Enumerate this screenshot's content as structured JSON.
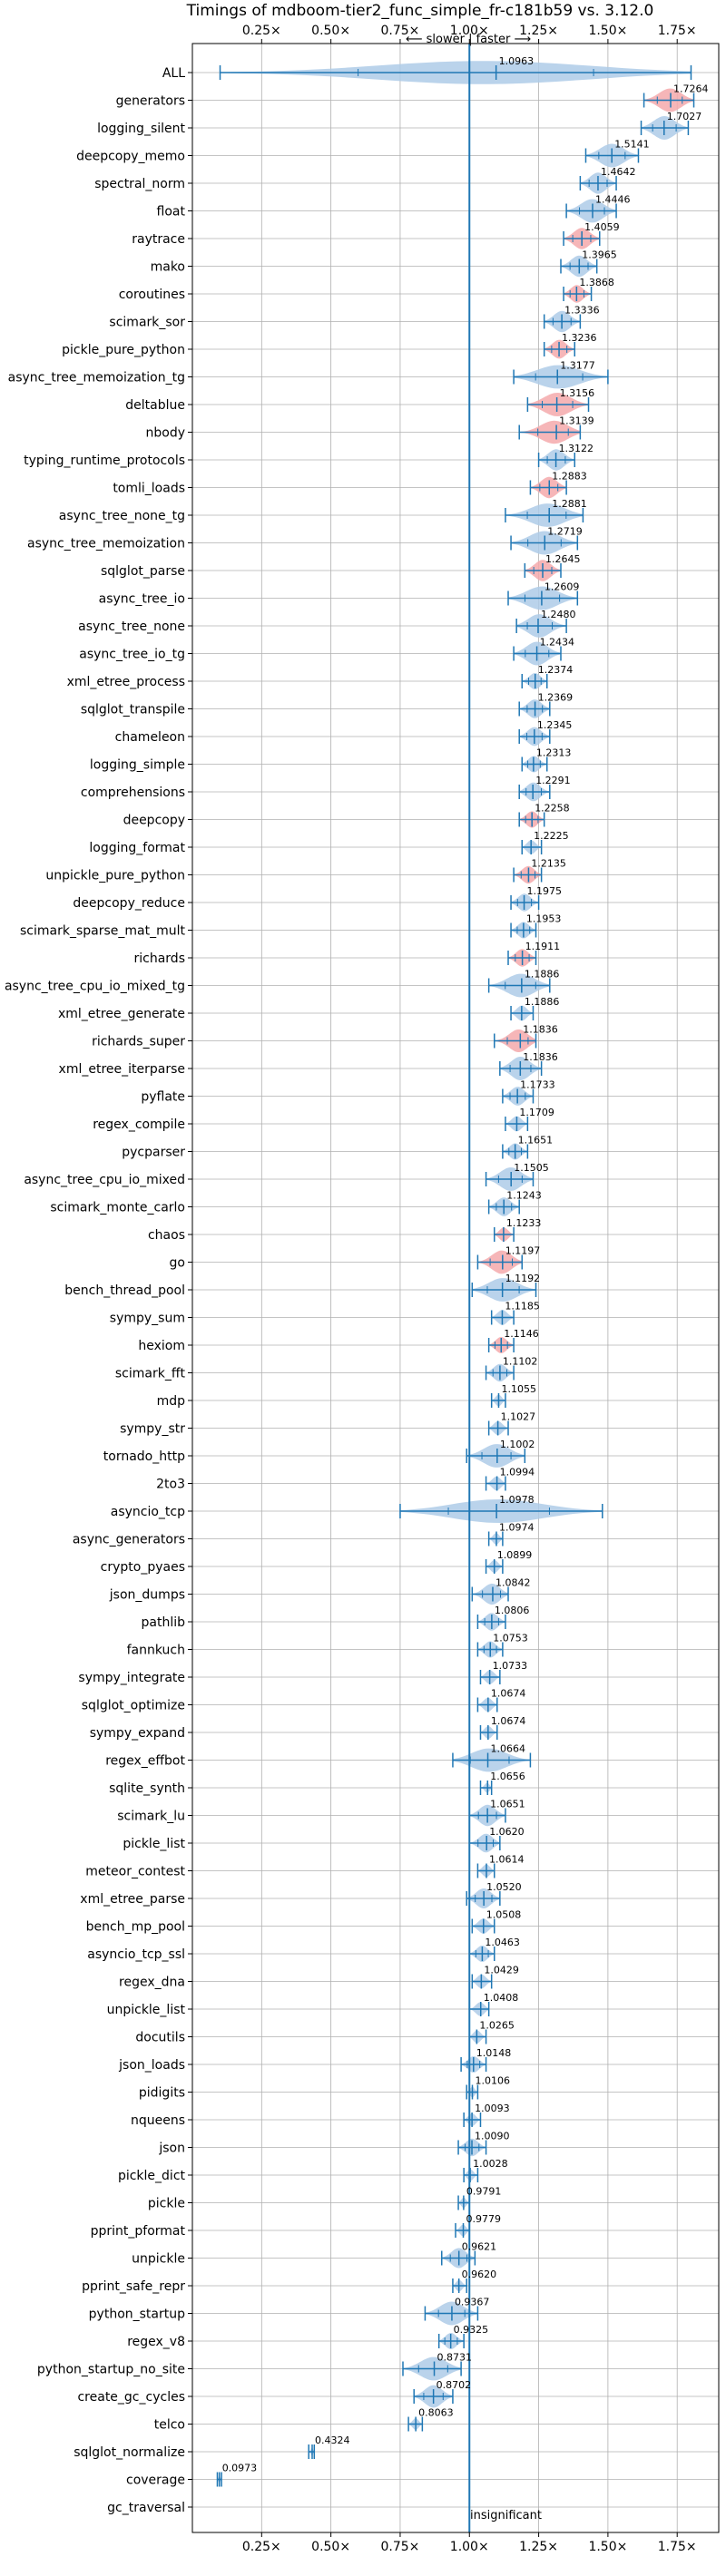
{
  "chart_data": {
    "type": "violin",
    "title": "Timings of mdboom-tier2_func_simple_fr-c181b59 vs. 3.12.0",
    "direction_note": "⟵ slower | faster ⟶",
    "reference_note": "insignificant",
    "xlim": [
      0.0,
      1.9
    ],
    "xticks": [
      0.25,
      0.5,
      0.75,
      1.0,
      1.25,
      1.5,
      1.75
    ],
    "xtick_labels": [
      "0.25×",
      "0.50×",
      "0.75×",
      "1.00×",
      "1.25×",
      "1.50×",
      "1.75×"
    ],
    "reference_line": 1.0,
    "grid": true,
    "colors": {
      "faster": "#aecbe8",
      "slower": "#f4a9ab",
      "line": "#1f77b4",
      "grid": "#b0b0b0"
    },
    "benchmarks": [
      {
        "name": "ALL",
        "value": 1.0963,
        "label": "1.0963",
        "min": 0.1,
        "max": 1.8,
        "color": "blue"
      },
      {
        "name": "generators",
        "value": 1.7264,
        "label": "1.7264",
        "min": 1.63,
        "max": 1.81,
        "color": "red"
      },
      {
        "name": "logging_silent",
        "value": 1.7027,
        "label": "1.7027",
        "min": 1.62,
        "max": 1.79,
        "color": "blue"
      },
      {
        "name": "deepcopy_memo",
        "value": 1.5141,
        "label": "1.5141",
        "min": 1.42,
        "max": 1.61,
        "color": "blue"
      },
      {
        "name": "spectral_norm",
        "value": 1.4642,
        "label": "1.4642",
        "min": 1.4,
        "max": 1.53,
        "color": "blue"
      },
      {
        "name": "float",
        "value": 1.4446,
        "label": "1.4446",
        "min": 1.35,
        "max": 1.53,
        "color": "blue"
      },
      {
        "name": "raytrace",
        "value": 1.4059,
        "label": "1.4059",
        "min": 1.34,
        "max": 1.47,
        "color": "red"
      },
      {
        "name": "mako",
        "value": 1.3965,
        "label": "1.3965",
        "min": 1.33,
        "max": 1.46,
        "color": "blue"
      },
      {
        "name": "coroutines",
        "value": 1.3868,
        "label": "1.3868",
        "min": 1.34,
        "max": 1.44,
        "color": "red"
      },
      {
        "name": "scimark_sor",
        "value": 1.3336,
        "label": "1.3336",
        "min": 1.27,
        "max": 1.4,
        "color": "blue"
      },
      {
        "name": "pickle_pure_python",
        "value": 1.3236,
        "label": "1.3236",
        "min": 1.27,
        "max": 1.38,
        "color": "red"
      },
      {
        "name": "async_tree_memoization_tg",
        "value": 1.3177,
        "label": "1.3177",
        "min": 1.16,
        "max": 1.5,
        "color": "blue"
      },
      {
        "name": "deltablue",
        "value": 1.3156,
        "label": "1.3156",
        "min": 1.21,
        "max": 1.43,
        "color": "red"
      },
      {
        "name": "nbody",
        "value": 1.3139,
        "label": "1.3139",
        "min": 1.18,
        "max": 1.4,
        "color": "red"
      },
      {
        "name": "typing_runtime_protocols",
        "value": 1.3122,
        "label": "1.3122",
        "min": 1.25,
        "max": 1.38,
        "color": "blue"
      },
      {
        "name": "tomli_loads",
        "value": 1.2883,
        "label": "1.2883",
        "min": 1.22,
        "max": 1.35,
        "color": "red"
      },
      {
        "name": "async_tree_none_tg",
        "value": 1.2881,
        "label": "1.2881",
        "min": 1.13,
        "max": 1.41,
        "color": "blue"
      },
      {
        "name": "async_tree_memoization",
        "value": 1.2719,
        "label": "1.2719",
        "min": 1.15,
        "max": 1.39,
        "color": "blue"
      },
      {
        "name": "sqlglot_parse",
        "value": 1.2645,
        "label": "1.2645",
        "min": 1.2,
        "max": 1.33,
        "color": "red"
      },
      {
        "name": "async_tree_io",
        "value": 1.2609,
        "label": "1.2609",
        "min": 1.14,
        "max": 1.39,
        "color": "blue"
      },
      {
        "name": "async_tree_none",
        "value": 1.248,
        "label": "1.2480",
        "min": 1.17,
        "max": 1.35,
        "color": "blue"
      },
      {
        "name": "async_tree_io_tg",
        "value": 1.2434,
        "label": "1.2434",
        "min": 1.16,
        "max": 1.33,
        "color": "blue"
      },
      {
        "name": "xml_etree_process",
        "value": 1.2374,
        "label": "1.2374",
        "min": 1.19,
        "max": 1.28,
        "color": "blue"
      },
      {
        "name": "sqlglot_transpile",
        "value": 1.2369,
        "label": "1.2369",
        "min": 1.18,
        "max": 1.29,
        "color": "blue"
      },
      {
        "name": "chameleon",
        "value": 1.2345,
        "label": "1.2345",
        "min": 1.18,
        "max": 1.29,
        "color": "blue"
      },
      {
        "name": "logging_simple",
        "value": 1.2313,
        "label": "1.2313",
        "min": 1.19,
        "max": 1.28,
        "color": "blue"
      },
      {
        "name": "comprehensions",
        "value": 1.2291,
        "label": "1.2291",
        "min": 1.18,
        "max": 1.29,
        "color": "blue"
      },
      {
        "name": "deepcopy",
        "value": 1.2258,
        "label": "1.2258",
        "min": 1.18,
        "max": 1.27,
        "color": "red"
      },
      {
        "name": "logging_format",
        "value": 1.2225,
        "label": "1.2225",
        "min": 1.19,
        "max": 1.26,
        "color": "blue"
      },
      {
        "name": "unpickle_pure_python",
        "value": 1.2135,
        "label": "1.2135",
        "min": 1.16,
        "max": 1.26,
        "color": "red"
      },
      {
        "name": "deepcopy_reduce",
        "value": 1.1975,
        "label": "1.1975",
        "min": 1.15,
        "max": 1.25,
        "color": "blue"
      },
      {
        "name": "scimark_sparse_mat_mult",
        "value": 1.1953,
        "label": "1.1953",
        "min": 1.15,
        "max": 1.24,
        "color": "blue"
      },
      {
        "name": "richards",
        "value": 1.1911,
        "label": "1.1911",
        "min": 1.14,
        "max": 1.24,
        "color": "red"
      },
      {
        "name": "async_tree_cpu_io_mixed_tg",
        "value": 1.1886,
        "label": "1.1886",
        "min": 1.07,
        "max": 1.29,
        "color": "blue"
      },
      {
        "name": "xml_etree_generate",
        "value": 1.1886,
        "label": "1.1886",
        "min": 1.15,
        "max": 1.23,
        "color": "blue"
      },
      {
        "name": "richards_super",
        "value": 1.1836,
        "label": "1.1836",
        "min": 1.09,
        "max": 1.24,
        "color": "red"
      },
      {
        "name": "xml_etree_iterparse",
        "value": 1.1836,
        "label": "1.1836",
        "min": 1.11,
        "max": 1.26,
        "color": "blue"
      },
      {
        "name": "pyflate",
        "value": 1.1733,
        "label": "1.1733",
        "min": 1.12,
        "max": 1.23,
        "color": "blue"
      },
      {
        "name": "regex_compile",
        "value": 1.1709,
        "label": "1.1709",
        "min": 1.13,
        "max": 1.21,
        "color": "blue"
      },
      {
        "name": "pycparser",
        "value": 1.1651,
        "label": "1.1651",
        "min": 1.12,
        "max": 1.21,
        "color": "blue"
      },
      {
        "name": "async_tree_cpu_io_mixed",
        "value": 1.1505,
        "label": "1.1505",
        "min": 1.06,
        "max": 1.23,
        "color": "blue"
      },
      {
        "name": "scimark_monte_carlo",
        "value": 1.1243,
        "label": "1.1243",
        "min": 1.07,
        "max": 1.18,
        "color": "blue"
      },
      {
        "name": "chaos",
        "value": 1.1233,
        "label": "1.1233",
        "min": 1.09,
        "max": 1.16,
        "color": "red"
      },
      {
        "name": "go",
        "value": 1.1197,
        "label": "1.1197",
        "min": 1.03,
        "max": 1.19,
        "color": "red"
      },
      {
        "name": "bench_thread_pool",
        "value": 1.1192,
        "label": "1.1192",
        "min": 1.01,
        "max": 1.24,
        "color": "blue"
      },
      {
        "name": "sympy_sum",
        "value": 1.1185,
        "label": "1.1185",
        "min": 1.08,
        "max": 1.16,
        "color": "blue"
      },
      {
        "name": "hexiom",
        "value": 1.1146,
        "label": "1.1146",
        "min": 1.07,
        "max": 1.16,
        "color": "red"
      },
      {
        "name": "scimark_fft",
        "value": 1.1102,
        "label": "1.1102",
        "min": 1.06,
        "max": 1.16,
        "color": "blue"
      },
      {
        "name": "mdp",
        "value": 1.1055,
        "label": "1.1055",
        "min": 1.08,
        "max": 1.13,
        "color": "blue"
      },
      {
        "name": "sympy_str",
        "value": 1.1027,
        "label": "1.1027",
        "min": 1.07,
        "max": 1.14,
        "color": "blue"
      },
      {
        "name": "tornado_http",
        "value": 1.1002,
        "label": "1.1002",
        "min": 0.99,
        "max": 1.2,
        "color": "blue"
      },
      {
        "name": "2to3",
        "value": 1.0994,
        "label": "1.0994",
        "min": 1.06,
        "max": 1.13,
        "color": "blue"
      },
      {
        "name": "asyncio_tcp",
        "value": 1.0978,
        "label": "1.0978",
        "min": 0.75,
        "max": 1.48,
        "color": "blue"
      },
      {
        "name": "async_generators",
        "value": 1.0974,
        "label": "1.0974",
        "min": 1.07,
        "max": 1.12,
        "color": "blue"
      },
      {
        "name": "crypto_pyaes",
        "value": 1.0899,
        "label": "1.0899",
        "min": 1.06,
        "max": 1.12,
        "color": "blue"
      },
      {
        "name": "json_dumps",
        "value": 1.0842,
        "label": "1.0842",
        "min": 1.01,
        "max": 1.14,
        "color": "blue"
      },
      {
        "name": "pathlib",
        "value": 1.0806,
        "label": "1.0806",
        "min": 1.03,
        "max": 1.13,
        "color": "blue"
      },
      {
        "name": "fannkuch",
        "value": 1.0753,
        "label": "1.0753",
        "min": 1.03,
        "max": 1.12,
        "color": "blue"
      },
      {
        "name": "sympy_integrate",
        "value": 1.0733,
        "label": "1.0733",
        "min": 1.04,
        "max": 1.11,
        "color": "blue"
      },
      {
        "name": "sqlglot_optimize",
        "value": 1.0674,
        "label": "1.0674",
        "min": 1.03,
        "max": 1.1,
        "color": "blue"
      },
      {
        "name": "sympy_expand",
        "value": 1.0674,
        "label": "1.0674",
        "min": 1.04,
        "max": 1.1,
        "color": "blue"
      },
      {
        "name": "regex_effbot",
        "value": 1.0664,
        "label": "1.0664",
        "min": 0.94,
        "max": 1.22,
        "color": "blue"
      },
      {
        "name": "sqlite_synth",
        "value": 1.0656,
        "label": "1.0656",
        "min": 1.04,
        "max": 1.08,
        "color": "blue"
      },
      {
        "name": "scimark_lu",
        "value": 1.0651,
        "label": "1.0651",
        "min": 1.0,
        "max": 1.13,
        "color": "blue"
      },
      {
        "name": "pickle_list",
        "value": 1.062,
        "label": "1.0620",
        "min": 1.0,
        "max": 1.11,
        "color": "blue"
      },
      {
        "name": "meteor_contest",
        "value": 1.0614,
        "label": "1.0614",
        "min": 1.03,
        "max": 1.09,
        "color": "blue"
      },
      {
        "name": "xml_etree_parse",
        "value": 1.052,
        "label": "1.0520",
        "min": 0.99,
        "max": 1.11,
        "color": "blue"
      },
      {
        "name": "bench_mp_pool",
        "value": 1.0508,
        "label": "1.0508",
        "min": 1.01,
        "max": 1.09,
        "color": "blue"
      },
      {
        "name": "asyncio_tcp_ssl",
        "value": 1.0463,
        "label": "1.0463",
        "min": 1.0,
        "max": 1.09,
        "color": "blue"
      },
      {
        "name": "regex_dna",
        "value": 1.0429,
        "label": "1.0429",
        "min": 1.01,
        "max": 1.08,
        "color": "blue"
      },
      {
        "name": "unpickle_list",
        "value": 1.0408,
        "label": "1.0408",
        "min": 1.0,
        "max": 1.07,
        "color": "blue"
      },
      {
        "name": "docutils",
        "value": 1.0265,
        "label": "1.0265",
        "min": 1.0,
        "max": 1.06,
        "color": "blue"
      },
      {
        "name": "json_loads",
        "value": 1.0148,
        "label": "1.0148",
        "min": 0.97,
        "max": 1.06,
        "color": "blue"
      },
      {
        "name": "pidigits",
        "value": 1.0106,
        "label": "1.0106",
        "min": 0.99,
        "max": 1.03,
        "color": "blue"
      },
      {
        "name": "nqueens",
        "value": 1.0093,
        "label": "1.0093",
        "min": 0.98,
        "max": 1.04,
        "color": "blue"
      },
      {
        "name": "json",
        "value": 1.009,
        "label": "1.0090",
        "min": 0.96,
        "max": 1.06,
        "color": "blue"
      },
      {
        "name": "pickle_dict",
        "value": 1.0028,
        "label": "1.0028",
        "min": 0.98,
        "max": 1.03,
        "color": "blue"
      },
      {
        "name": "pickle",
        "value": 0.9791,
        "label": "0.9791",
        "min": 0.96,
        "max": 1.0,
        "color": "blue"
      },
      {
        "name": "pprint_pformat",
        "value": 0.9779,
        "label": "0.9779",
        "min": 0.95,
        "max": 1.0,
        "color": "blue"
      },
      {
        "name": "unpickle",
        "value": 0.9621,
        "label": "0.9621",
        "min": 0.9,
        "max": 1.02,
        "color": "blue"
      },
      {
        "name": "pprint_safe_repr",
        "value": 0.962,
        "label": "0.9620",
        "min": 0.94,
        "max": 0.99,
        "color": "blue"
      },
      {
        "name": "python_startup",
        "value": 0.9367,
        "label": "0.9367",
        "min": 0.84,
        "max": 1.03,
        "color": "blue"
      },
      {
        "name": "regex_v8",
        "value": 0.9325,
        "label": "0.9325",
        "min": 0.89,
        "max": 0.98,
        "color": "blue"
      },
      {
        "name": "python_startup_no_site",
        "value": 0.8731,
        "label": "0.8731",
        "min": 0.76,
        "max": 0.97,
        "color": "blue"
      },
      {
        "name": "create_gc_cycles",
        "value": 0.8702,
        "label": "0.8702",
        "min": 0.8,
        "max": 0.94,
        "color": "blue"
      },
      {
        "name": "telco",
        "value": 0.8063,
        "label": "0.8063",
        "min": 0.78,
        "max": 0.83,
        "color": "blue"
      },
      {
        "name": "sqlglot_normalize",
        "value": 0.4324,
        "label": "0.4324",
        "min": 0.42,
        "max": 0.44,
        "color": "blue"
      },
      {
        "name": "coverage",
        "value": 0.0973,
        "label": "0.0973",
        "min": 0.09,
        "max": 0.105,
        "color": "blue"
      },
      {
        "name": "gc_traversal",
        "value": null,
        "label": "",
        "min": null,
        "max": null,
        "color": "none"
      }
    ]
  }
}
